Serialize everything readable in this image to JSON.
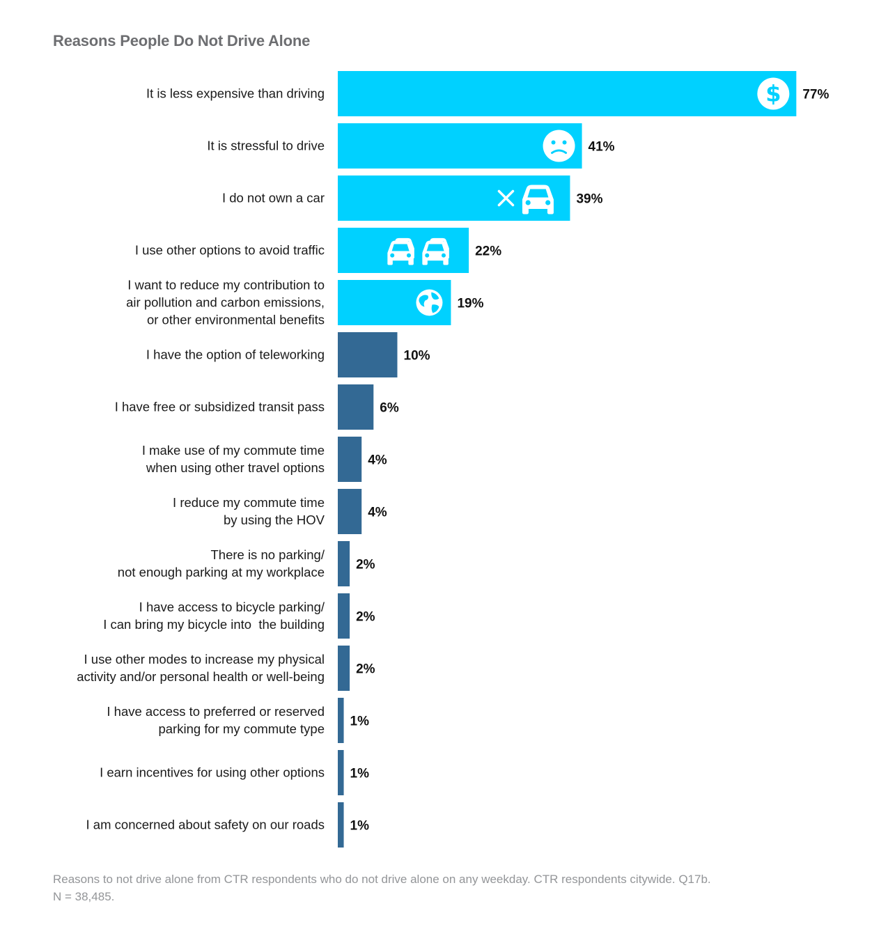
{
  "chart_data": {
    "type": "bar",
    "orientation": "horizontal",
    "title": "Reasons People Do Not Drive Alone",
    "categories": [
      [
        "It is less expensive than driving"
      ],
      [
        "It is stressful to drive"
      ],
      [
        "I do not own a car"
      ],
      [
        "I use other options to avoid traffic"
      ],
      [
        "I want to reduce my contribution to",
        "air pollution and carbon emissions,",
        "or other environmental benefits"
      ],
      [
        "I have the option of teleworking"
      ],
      [
        "I have free or subsidized transit pass"
      ],
      [
        "I make use of my commute time",
        "when using other travel options"
      ],
      [
        "I reduce my commute time",
        "by using the HOV"
      ],
      [
        "There is no parking/",
        "not enough parking at my workplace"
      ],
      [
        "I have access to bicycle parking/",
        "I can bring my bicycle into  the building"
      ],
      [
        "I use other modes to increase my physical",
        "activity and/or personal health or well-being"
      ],
      [
        "I have access to preferred or reserved",
        "parking for my commute type"
      ],
      [
        "I earn incentives for using other options"
      ],
      [
        "I am concerned about safety on our roads"
      ]
    ],
    "values": [
      77,
      41,
      39,
      22,
      19,
      10,
      6,
      4,
      4,
      2,
      2,
      2,
      1,
      1,
      1
    ],
    "value_labels": [
      "77%",
      "41%",
      "39%",
      "22%",
      "19%",
      "10%",
      "6%",
      "4%",
      "4%",
      "2%",
      "2%",
      "2%",
      "1%",
      "1%",
      "1%"
    ],
    "unit": "%",
    "icons": [
      "dollar-icon",
      "sad-face-icon",
      "no-car-icon",
      "traffic-cars-icon",
      "globe-icon"
    ],
    "xlim": [
      0,
      80
    ],
    "grid": false,
    "legend": "none",
    "colors": {
      "highlight": "#00d1ff",
      "base": "#336994",
      "label": "#1a1a1a",
      "value": "#111111"
    }
  },
  "footnote": {
    "line1": "Reasons to not drive alone from CTR respondents who do not drive alone on any weekday. CTR respondents citywide. Q17b.",
    "line2": "N = 38,485."
  }
}
